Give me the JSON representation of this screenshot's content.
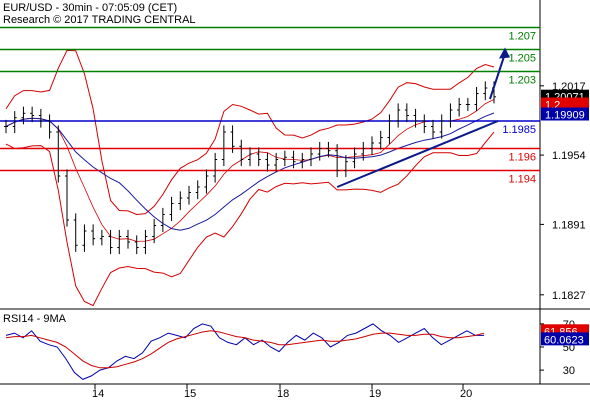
{
  "header": {
    "title": "EUR/USD - 30min - 07:05:09 (CET)",
    "research": "Research © 2017 TRADING CENTRAL"
  },
  "colors": {
    "candles": "#000000",
    "bollinger": "#d40000",
    "moving_average": "#1a1aa0",
    "support": "#e00000",
    "pivot": "#0000cc",
    "resistance": "#008000",
    "trendline": "#0b1a8a",
    "rsi": "#0000aa",
    "rsi_ma": "#cc0000",
    "price_tag": "#000000",
    "tag_red": "#e00000",
    "tag_blue": "#0000aa"
  },
  "chart_data": [
    {
      "type": "candlestick",
      "title": "EUR/USD - 30min",
      "y_ticks": [
        "1.2017",
        "1.1954",
        "1.1891",
        "1.1827"
      ],
      "ylim": [
        1.1815,
        1.2095
      ],
      "x_ticks": [
        "14",
        "15",
        "18",
        "19",
        "20"
      ],
      "levels": [
        {
          "label": "1.207",
          "value": 1.207,
          "kind": "resistance"
        },
        {
          "label": "1.205",
          "value": 1.205,
          "kind": "resistance"
        },
        {
          "label": "1.203",
          "value": 1.203,
          "kind": "resistance"
        },
        {
          "label": "1.1985",
          "value": 1.1985,
          "kind": "pivot"
        },
        {
          "label": "1.196",
          "value": 1.196,
          "kind": "support"
        },
        {
          "label": "1.194",
          "value": 1.194,
          "kind": "support"
        }
      ],
      "price_tags": [
        {
          "label": "1.20071",
          "value": 1.20071,
          "style": "dark"
        },
        {
          "label": "1.2",
          "value": 1.2,
          "style": "red"
        },
        {
          "label": "1.19909",
          "value": 1.19909,
          "style": "blue"
        }
      ],
      "close_series": [
        1.198,
        1.1988,
        1.1992,
        1.199,
        1.1985,
        1.1975,
        1.1935,
        1.1895,
        1.1872,
        1.1885,
        1.1878,
        1.188,
        1.187,
        1.188,
        1.1875,
        1.187,
        1.188,
        1.189,
        1.19,
        1.191,
        1.1915,
        1.192,
        1.1925,
        1.1935,
        1.195,
        1.1975,
        1.1962,
        1.195,
        1.1955,
        1.195,
        1.1945,
        1.195,
        1.1952,
        1.1948,
        1.195,
        1.1955,
        1.196,
        1.1958,
        1.194,
        1.1948,
        1.1955,
        1.196,
        1.1965,
        1.197,
        1.1985,
        1.1995,
        1.199,
        1.1985,
        1.198,
        1.1975,
        1.1985,
        1.1995,
        1.2,
        1.2,
        1.201,
        1.2015,
        1.2007
      ],
      "forecast": {
        "from": 1.2005,
        "to": 1.205
      }
    },
    {
      "type": "line",
      "title": "RSI14 - 9MA",
      "y_ticks": [
        "70",
        "50",
        "30"
      ],
      "ylim": [
        18,
        82
      ],
      "x_ticks": [
        "14",
        "15",
        "18",
        "19",
        "20"
      ],
      "rsi_tags": [
        {
          "label": "61.856",
          "value": 61.856,
          "style": "red"
        },
        {
          "label": "60.0623",
          "value": 60.0623,
          "style": "blue"
        }
      ],
      "series": [
        {
          "name": "RSI14",
          "values": [
            60,
            62,
            58,
            64,
            55,
            52,
            50,
            40,
            28,
            22,
            25,
            30,
            32,
            38,
            42,
            40,
            45,
            55,
            58,
            62,
            60,
            58,
            66,
            70,
            68,
            58,
            54,
            52,
            58,
            52,
            56,
            50,
            46,
            54,
            60,
            56,
            62,
            58,
            50,
            54,
            60,
            62,
            66,
            70,
            64,
            60,
            54,
            58,
            62,
            66,
            58,
            52,
            56,
            60,
            64,
            60,
            60
          ]
        },
        {
          "name": "9MA",
          "values": [
            58,
            59,
            59,
            60,
            58,
            56,
            54,
            50,
            44,
            38,
            34,
            32,
            32,
            33,
            35,
            37,
            40,
            44,
            49,
            54,
            57,
            59,
            61,
            63,
            64,
            63,
            61,
            59,
            58,
            56,
            55,
            54,
            52,
            52,
            53,
            54,
            55,
            56,
            55,
            55,
            56,
            57,
            59,
            61,
            62,
            62,
            61,
            60,
            60,
            61,
            61,
            59,
            58,
            58,
            59,
            60,
            61.9
          ]
        }
      ]
    }
  ]
}
